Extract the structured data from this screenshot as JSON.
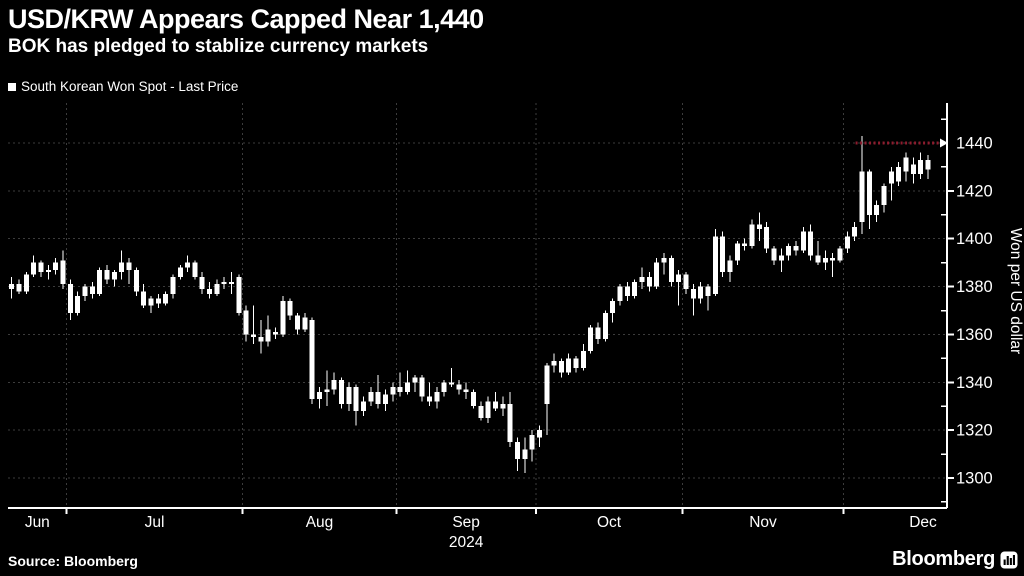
{
  "header": {
    "title": "USD/KRW Appears Capped Near 1,440",
    "subtitle": "BOK has pledged to stablize currency markets"
  },
  "legend": {
    "label": "South Korean Won Spot - Last Price"
  },
  "footer": {
    "source": "Source: Bloomberg",
    "brand": "Bloomberg"
  },
  "chart_data": {
    "type": "candlestick",
    "title": "USD/KRW Appears Capped Near 1,440",
    "subtitle": "BOK has pledged to stablize currency markets",
    "legend": "South Korean Won Spot - Last Price",
    "ylabel": "Won per US dollar",
    "x_year": "2024",
    "year_under_month": "Sep",
    "yticks": [
      1300,
      1320,
      1340,
      1360,
      1380,
      1400,
      1420,
      1440
    ],
    "ylim": [
      1288,
      1457
    ],
    "grid": true,
    "legend_position": "top-left",
    "annotation": {
      "type": "dotted-resistance-line",
      "level": 1440,
      "color": "#8e1c2e"
    },
    "colors": {
      "background": "#000000",
      "candle": "#ffffff",
      "grid": "#3c3c3c",
      "axis": "#ffffff",
      "annotation": "#8e1c2e"
    },
    "months": [
      {
        "label": "Jun",
        "candles": [
          [
            1379,
            1384,
            1375,
            1381
          ],
          [
            1381,
            1383,
            1377,
            1378
          ],
          [
            1378,
            1386,
            1377,
            1385
          ],
          [
            1385,
            1393,
            1384,
            1390
          ],
          [
            1390,
            1391,
            1384,
            1386
          ],
          [
            1386,
            1389,
            1383,
            1387
          ],
          [
            1387,
            1392,
            1385,
            1390
          ],
          [
            1391,
            1395,
            1379,
            1381
          ]
        ]
      },
      {
        "label": "Jul",
        "candles": [
          [
            1381,
            1383,
            1366,
            1369
          ],
          [
            1369,
            1378,
            1368,
            1376
          ],
          [
            1376,
            1381,
            1374,
            1380
          ],
          [
            1380,
            1382,
            1375,
            1377
          ],
          [
            1377,
            1388,
            1376,
            1387
          ],
          [
            1387,
            1389,
            1381,
            1383
          ],
          [
            1383,
            1387,
            1380,
            1386
          ],
          [
            1386,
            1395,
            1383,
            1390
          ],
          [
            1390,
            1392,
            1381,
            1387
          ],
          [
            1387,
            1388,
            1376,
            1378
          ],
          [
            1378,
            1381,
            1371,
            1372
          ],
          [
            1372,
            1376,
            1369,
            1375
          ],
          [
            1375,
            1377,
            1371,
            1373
          ],
          [
            1373,
            1378,
            1372,
            1377
          ],
          [
            1377,
            1385,
            1375,
            1384
          ],
          [
            1384,
            1389,
            1383,
            1388
          ],
          [
            1388,
            1393,
            1386,
            1390
          ],
          [
            1390,
            1391,
            1383,
            1384
          ],
          [
            1384,
            1386,
            1377,
            1379
          ],
          [
            1379,
            1382,
            1375,
            1377
          ],
          [
            1377,
            1383,
            1376,
            1381
          ],
          [
            1381,
            1384,
            1379,
            1382
          ],
          [
            1382,
            1386,
            1377,
            1381
          ],
          [
            1384,
            1385,
            1368,
            1369
          ]
        ]
      },
      {
        "label": "Aug",
        "candles": [
          [
            1370,
            1372,
            1357,
            1360
          ],
          [
            1360,
            1372,
            1356,
            1359
          ],
          [
            1359,
            1366,
            1352,
            1357
          ],
          [
            1357,
            1368,
            1355,
            1362
          ],
          [
            1361,
            1363,
            1358,
            1360
          ],
          [
            1360,
            1376,
            1359,
            1374
          ],
          [
            1374,
            1375,
            1366,
            1368
          ],
          [
            1368,
            1369,
            1360,
            1362
          ],
          [
            1362,
            1369,
            1361,
            1367
          ],
          [
            1366,
            1367,
            1331,
            1333
          ],
          [
            1333,
            1338,
            1329,
            1336
          ],
          [
            1336,
            1345,
            1330,
            1337
          ],
          [
            1337,
            1344,
            1335,
            1341
          ],
          [
            1341,
            1342,
            1329,
            1331
          ],
          [
            1331,
            1340,
            1328,
            1338
          ],
          [
            1338,
            1339,
            1322,
            1328
          ],
          [
            1328,
            1334,
            1326,
            1332
          ],
          [
            1332,
            1338,
            1330,
            1336
          ],
          [
            1336,
            1343,
            1329,
            1331
          ],
          [
            1331,
            1337,
            1328,
            1335
          ],
          [
            1335,
            1340,
            1332,
            1338
          ]
        ]
      },
      {
        "label": "Sep",
        "candles": [
          [
            1338,
            1344,
            1334,
            1336
          ],
          [
            1336,
            1345,
            1335,
            1340
          ],
          [
            1340,
            1343,
            1336,
            1342
          ],
          [
            1342,
            1343,
            1332,
            1334
          ],
          [
            1334,
            1340,
            1330,
            1332
          ],
          [
            1332,
            1338,
            1329,
            1336
          ],
          [
            1336,
            1341,
            1334,
            1340
          ],
          [
            1340,
            1346,
            1338,
            1339
          ],
          [
            1339,
            1341,
            1335,
            1337
          ],
          [
            1337,
            1340,
            1333,
            1336
          ],
          [
            1336,
            1337,
            1329,
            1330
          ],
          [
            1330,
            1332,
            1324,
            1325
          ],
          [
            1325,
            1334,
            1323,
            1332
          ],
          [
            1332,
            1336,
            1328,
            1329
          ],
          [
            1329,
            1334,
            1326,
            1331
          ],
          [
            1331,
            1336,
            1313,
            1315
          ],
          [
            1315,
            1317,
            1303,
            1308
          ],
          [
            1308,
            1317,
            1302,
            1312
          ],
          [
            1312,
            1320,
            1307,
            1318
          ]
        ]
      },
      {
        "label": "Oct",
        "candles": [
          [
            1317,
            1322,
            1313,
            1320
          ],
          [
            1331,
            1348,
            1318,
            1347
          ],
          [
            1347,
            1352,
            1344,
            1349
          ],
          [
            1349,
            1350,
            1342,
            1344
          ],
          [
            1344,
            1352,
            1343,
            1350
          ],
          [
            1350,
            1351,
            1344,
            1346
          ],
          [
            1346,
            1356,
            1345,
            1353
          ],
          [
            1353,
            1364,
            1352,
            1363
          ],
          [
            1363,
            1365,
            1356,
            1358
          ],
          [
            1358,
            1370,
            1357,
            1369
          ],
          [
            1369,
            1375,
            1365,
            1374
          ],
          [
            1374,
            1381,
            1372,
            1380
          ],
          [
            1380,
            1382,
            1374,
            1376
          ],
          [
            1376,
            1383,
            1375,
            1382
          ],
          [
            1382,
            1388,
            1379,
            1384
          ],
          [
            1384,
            1386,
            1378,
            1380
          ],
          [
            1380,
            1392,
            1379,
            1390
          ],
          [
            1390,
            1394,
            1385,
            1392
          ],
          [
            1392,
            1393,
            1380,
            1382
          ],
          [
            1382,
            1387,
            1372,
            1385
          ]
        ]
      },
      {
        "label": "Nov",
        "candles": [
          [
            1385,
            1386,
            1377,
            1379
          ],
          [
            1379,
            1381,
            1368,
            1375
          ],
          [
            1375,
            1382,
            1373,
            1380
          ],
          [
            1380,
            1381,
            1370,
            1376
          ],
          [
            1377,
            1404,
            1376,
            1401
          ],
          [
            1401,
            1403,
            1384,
            1386
          ],
          [
            1386,
            1393,
            1382,
            1391
          ],
          [
            1391,
            1399,
            1389,
            1398
          ],
          [
            1398,
            1400,
            1395,
            1397
          ],
          [
            1397,
            1408,
            1396,
            1406
          ],
          [
            1406,
            1411,
            1399,
            1404
          ],
          [
            1405,
            1407,
            1394,
            1396
          ],
          [
            1396,
            1397,
            1389,
            1391
          ],
          [
            1391,
            1396,
            1386,
            1393
          ],
          [
            1393,
            1398,
            1391,
            1397
          ],
          [
            1397,
            1399,
            1393,
            1395
          ],
          [
            1395,
            1405,
            1394,
            1403
          ],
          [
            1403,
            1406,
            1391,
            1393
          ],
          [
            1393,
            1399,
            1389,
            1390
          ],
          [
            1390,
            1395,
            1387,
            1392
          ],
          [
            1392,
            1394,
            1384,
            1391
          ],
          [
            1391,
            1397,
            1390,
            1396
          ]
        ]
      },
      {
        "label": "Dec",
        "candles": [
          [
            1396,
            1403,
            1394,
            1401
          ],
          [
            1401,
            1407,
            1399,
            1405
          ],
          [
            1407,
            1443,
            1402,
            1428
          ],
          [
            1428,
            1429,
            1404,
            1410
          ],
          [
            1410,
            1416,
            1407,
            1414
          ],
          [
            1414,
            1423,
            1411,
            1422
          ],
          [
            1423,
            1430,
            1416,
            1428
          ],
          [
            1424,
            1432,
            1422,
            1430
          ],
          [
            1428,
            1436,
            1424,
            1434
          ],
          [
            1431,
            1434,
            1423,
            1427
          ],
          [
            1427,
            1436,
            1425,
            1433
          ],
          [
            1433,
            1435,
            1425,
            1429
          ]
        ]
      }
    ]
  }
}
